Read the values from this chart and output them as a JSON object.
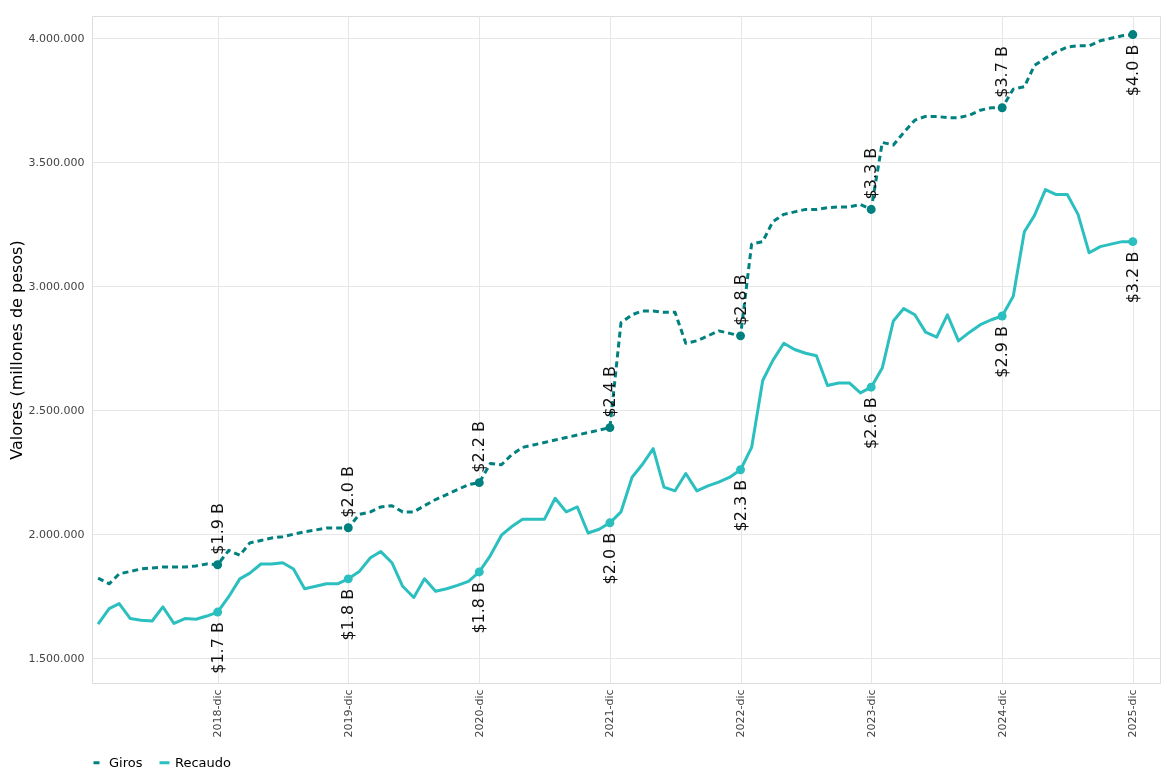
{
  "chart_data": {
    "type": "line",
    "ylabel": "Valores (millones de pesos)",
    "x": [
      "2018-01",
      "2018-02",
      "2018-03",
      "2018-04",
      "2018-05",
      "2018-06",
      "2018-07",
      "2018-08",
      "2018-09",
      "2018-10",
      "2018-11",
      "2018-12",
      "2019-01",
      "2019-02",
      "2019-03",
      "2019-04",
      "2019-05",
      "2019-06",
      "2019-07",
      "2019-08",
      "2019-09",
      "2019-10",
      "2019-11",
      "2019-12",
      "2020-01",
      "2020-02",
      "2020-03",
      "2020-04",
      "2020-05",
      "2020-06",
      "2020-07",
      "2020-08",
      "2020-09",
      "2020-10",
      "2020-11",
      "2020-12",
      "2021-01",
      "2021-02",
      "2021-03",
      "2021-04",
      "2021-05",
      "2021-06",
      "2021-07",
      "2021-08",
      "2021-09",
      "2021-10",
      "2021-11",
      "2021-12",
      "2022-01",
      "2022-02",
      "2022-03",
      "2022-04",
      "2022-05",
      "2022-06",
      "2022-07",
      "2022-08",
      "2022-09",
      "2022-10",
      "2022-11",
      "2022-12",
      "2023-01",
      "2023-02",
      "2023-03",
      "2023-04",
      "2023-05",
      "2023-06",
      "2023-07",
      "2023-08",
      "2023-09",
      "2023-10",
      "2023-11",
      "2023-12",
      "2024-01",
      "2024-02",
      "2024-03",
      "2024-04",
      "2024-05",
      "2024-06",
      "2024-07",
      "2024-08",
      "2024-09",
      "2024-10",
      "2024-11",
      "2024-12",
      "2025-01",
      "2025-02",
      "2025-03",
      "2025-04",
      "2025-05",
      "2025-06",
      "2025-07",
      "2025-08",
      "2025-09",
      "2025-10",
      "2025-11",
      "2025-12"
    ],
    "series": [
      {
        "name": "Giros",
        "color": "#00807f",
        "line_style": "dashed",
        "values": [
          1823000,
          1800000,
          1840000,
          1850000,
          1860000,
          1864000,
          1868000,
          1868000,
          1868000,
          1872000,
          1880000,
          1877000,
          1935000,
          1915000,
          1965000,
          1975000,
          1985000,
          1990000,
          2000000,
          2010000,
          2017000,
          2025000,
          2025000,
          2026000,
          2080000,
          2090000,
          2110000,
          2115000,
          2090000,
          2090000,
          2115000,
          2140000,
          2160000,
          2180000,
          2200000,
          2208000,
          2285000,
          2280000,
          2320000,
          2350000,
          2360000,
          2370000,
          2380000,
          2390000,
          2400000,
          2410000,
          2420000,
          2430000,
          2853000,
          2885000,
          2900000,
          2900000,
          2895000,
          2895000,
          2770000,
          2780000,
          2800000,
          2820000,
          2810000,
          2800000,
          3170000,
          3180000,
          3260000,
          3290000,
          3300000,
          3310000,
          3310000,
          3317000,
          3320000,
          3320000,
          3330000,
          3310000,
          3580000,
          3570000,
          3620000,
          3670000,
          3685000,
          3685000,
          3680000,
          3680000,
          3690000,
          3710000,
          3720000,
          3720000,
          3795000,
          3805000,
          3890000,
          3920000,
          3945000,
          3965000,
          3970000,
          3970000,
          3990000,
          4000000,
          4010000,
          4015000
        ]
      },
      {
        "name": "Recaudo",
        "color": "#2bbfbf",
        "line_style": "solid",
        "values": [
          1637000,
          1700000,
          1720000,
          1660000,
          1653000,
          1650000,
          1707000,
          1640000,
          1660000,
          1657000,
          1670000,
          1686000,
          1748000,
          1820000,
          1843000,
          1880000,
          1880000,
          1885000,
          1860000,
          1780000,
          1790000,
          1800000,
          1800000,
          1820000,
          1850000,
          1905000,
          1930000,
          1885000,
          1790000,
          1745000,
          1820000,
          1770000,
          1780000,
          1794000,
          1810000,
          1848000,
          1914000,
          1996000,
          2030000,
          2060000,
          2060000,
          2060000,
          2145000,
          2090000,
          2110000,
          2005000,
          2020000,
          2046000,
          2090000,
          2230000,
          2280000,
          2345000,
          2190000,
          2175000,
          2245000,
          2175000,
          2195000,
          2210000,
          2230000,
          2260000,
          2350000,
          2620000,
          2700000,
          2770000,
          2745000,
          2730000,
          2720000,
          2600000,
          2610000,
          2610000,
          2570000,
          2593000,
          2670000,
          2860000,
          2910000,
          2885000,
          2815000,
          2795000,
          2885000,
          2780000,
          2815000,
          2845000,
          2865000,
          2880000,
          2960000,
          3220000,
          3285000,
          3390000,
          3370000,
          3370000,
          3290000,
          3135000,
          3160000,
          3170000,
          3180000,
          3180000
        ]
      }
    ],
    "annotations": [
      {
        "text": "$1.9 B",
        "x": "2018-12",
        "y": 1877000
      },
      {
        "text": "$2.0 B",
        "x": "2019-12",
        "y": 2026000
      },
      {
        "text": "$2.2 B",
        "x": "2020-12",
        "y": 2208000
      },
      {
        "text": "$2.4 B",
        "x": "2021-12",
        "y": 2430000
      },
      {
        "text": "$2.8 B",
        "x": "2022-12",
        "y": 2800000
      },
      {
        "text": "$3.3 B",
        "x": "2023-12",
        "y": 3310000
      },
      {
        "text": "$3.7 B",
        "x": "2024-12",
        "y": 3720000
      },
      {
        "text": "$4.0 B",
        "x": "2025-12",
        "y": 4015000
      },
      {
        "text": "$1.7 B",
        "x": "2018-12",
        "y": 1686000
      },
      {
        "text": "$1.8 B",
        "x": "2019-12",
        "y": 1820000
      },
      {
        "text": "$1.8 B",
        "x": "2020-12",
        "y": 1848000
      },
      {
        "text": "$2.0 B",
        "x": "2021-12",
        "y": 2046000
      },
      {
        "text": "$2.3 B",
        "x": "2022-12",
        "y": 2260000
      },
      {
        "text": "$2.6 B",
        "x": "2023-12",
        "y": 2593000
      },
      {
        "text": "$2.9 B",
        "x": "2024-12",
        "y": 2880000
      },
      {
        "text": "$3.2 B",
        "x": "2025-12",
        "y": 3180000
      }
    ],
    "xlim": [
      "2017-12-15",
      "2026-02-15"
    ],
    "xticks": [
      {
        "value": "2018-12",
        "label": "2018-dic"
      },
      {
        "value": "2019-12",
        "label": "2019-dic"
      },
      {
        "value": "2020-12",
        "label": "2020-dic"
      },
      {
        "value": "2021-12",
        "label": "2021-dic"
      },
      {
        "value": "2022-12",
        "label": "2022-dic"
      },
      {
        "value": "2023-12",
        "label": "2023-dic"
      },
      {
        "value": "2024-12",
        "label": "2024-dic"
      },
      {
        "value": "2025-12",
        "label": "2025-dic"
      }
    ],
    "ylim": [
      1400000,
      4090000
    ],
    "yticks": [
      {
        "value": 1500000,
        "label": "1.500.000"
      },
      {
        "value": 2000000,
        "label": "2.000.000"
      },
      {
        "value": 2500000,
        "label": "2.500.000"
      },
      {
        "value": 3000000,
        "label": "3.000.000"
      },
      {
        "value": 3500000,
        "label": "3.500.000"
      },
      {
        "value": 4000000,
        "label": "4.000.000"
      }
    ],
    "grid": true,
    "legend": "bottom"
  }
}
